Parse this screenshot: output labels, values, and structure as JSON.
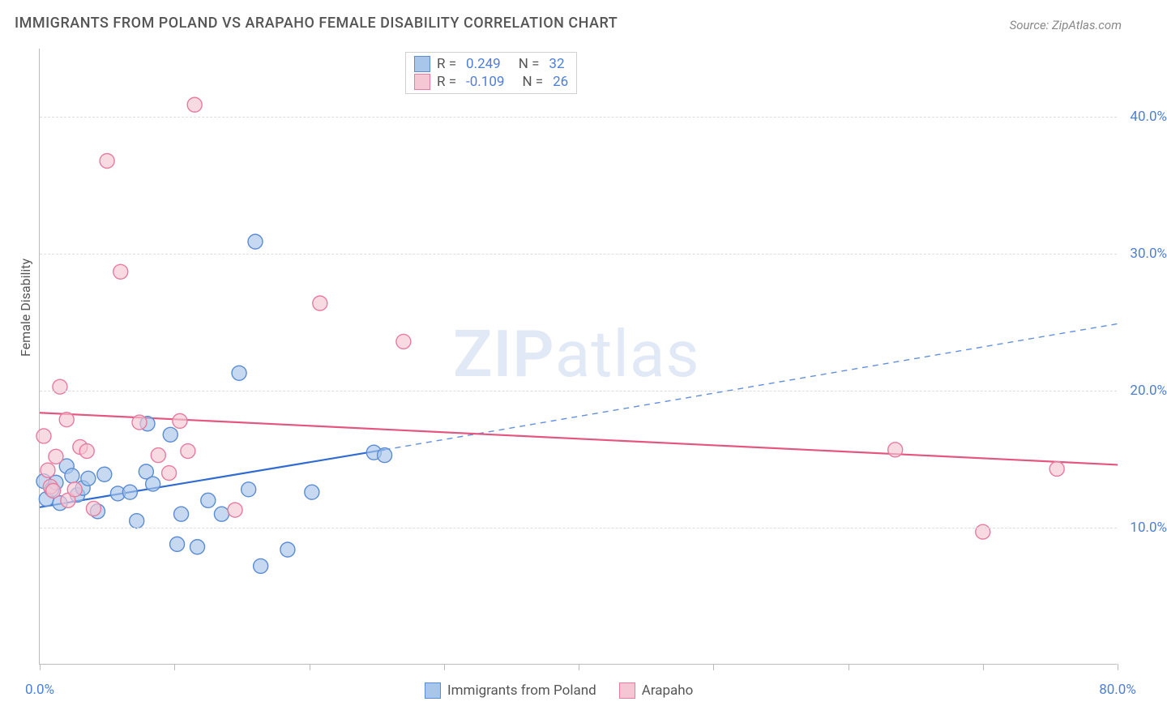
{
  "title": "IMMIGRANTS FROM POLAND VS ARAPAHO FEMALE DISABILITY CORRELATION CHART",
  "source": "Source: ZipAtlas.com",
  "y_axis_label": "Female Disability",
  "watermark": {
    "zip": "ZIP",
    "atlas": "atlas"
  },
  "chart": {
    "type": "scatter",
    "xlim": [
      0,
      80
    ],
    "ylim": [
      0,
      45
    ],
    "x_ticks": [
      0,
      10,
      20,
      30,
      40,
      50,
      60,
      70,
      80
    ],
    "x_tick_labels": {
      "0": "0.0%",
      "80": "80.0%"
    },
    "y_ticks": [
      10,
      20,
      30,
      40
    ],
    "y_tick_labels": {
      "10": "10.0%",
      "20": "20.0%",
      "30": "30.0%",
      "40": "40.0%"
    },
    "background_color": "#ffffff",
    "grid_color": "#dddddd",
    "axis_color": "#bbbbbb",
    "tick_label_color": "#4d7fd6",
    "marker_radius": 9,
    "marker_stroke_width": 1.4,
    "line_width": 2.2,
    "watermark_color": "#c9d8ef",
    "watermark_fontsize": 80
  },
  "series": [
    {
      "name": "Immigrants from Poland",
      "fill_color": "#a8c5ea",
      "stroke_color": "#5a8cd3",
      "line_color": "#2f6bd0",
      "r_value": "0.249",
      "n_value": "32",
      "points": [
        [
          0.3,
          13.4
        ],
        [
          0.5,
          12.1
        ],
        [
          0.9,
          12.8
        ],
        [
          1.2,
          13.3
        ],
        [
          1.5,
          11.8
        ],
        [
          2.0,
          14.5
        ],
        [
          2.4,
          13.8
        ],
        [
          2.8,
          12.4
        ],
        [
          3.2,
          12.9
        ],
        [
          3.6,
          13.6
        ],
        [
          4.3,
          11.2
        ],
        [
          4.8,
          13.9
        ],
        [
          5.8,
          12.5
        ],
        [
          6.7,
          12.6
        ],
        [
          7.2,
          10.5
        ],
        [
          7.9,
          14.1
        ],
        [
          8.0,
          17.6
        ],
        [
          8.4,
          13.2
        ],
        [
          9.7,
          16.8
        ],
        [
          10.2,
          8.8
        ],
        [
          10.5,
          11.0
        ],
        [
          11.7,
          8.6
        ],
        [
          12.5,
          12.0
        ],
        [
          13.5,
          11.0
        ],
        [
          14.8,
          21.3
        ],
        [
          15.5,
          12.8
        ],
        [
          16.0,
          30.9
        ],
        [
          16.4,
          7.2
        ],
        [
          18.4,
          8.4
        ],
        [
          20.2,
          12.6
        ],
        [
          24.8,
          15.5
        ],
        [
          25.6,
          15.3
        ]
      ],
      "regression": {
        "x1": 0,
        "y1": 11.5,
        "x2": 25.6,
        "y2": 15.7,
        "x_ext": 80,
        "y_ext": 24.9
      }
    },
    {
      "name": "Arapaho",
      "fill_color": "#f5c6d3",
      "stroke_color": "#e77ba0",
      "line_color": "#e3567f",
      "r_value": "-0.109",
      "n_value": "26",
      "points": [
        [
          0.3,
          16.7
        ],
        [
          0.6,
          14.2
        ],
        [
          0.8,
          13.0
        ],
        [
          1.0,
          12.7
        ],
        [
          1.2,
          15.2
        ],
        [
          1.5,
          20.3
        ],
        [
          2.0,
          17.9
        ],
        [
          2.1,
          12.0
        ],
        [
          2.6,
          12.8
        ],
        [
          3.0,
          15.9
        ],
        [
          3.5,
          15.6
        ],
        [
          4.0,
          11.4
        ],
        [
          5.0,
          36.8
        ],
        [
          6.0,
          28.7
        ],
        [
          7.4,
          17.7
        ],
        [
          8.8,
          15.3
        ],
        [
          9.6,
          14.0
        ],
        [
          10.4,
          17.8
        ],
        [
          11.0,
          15.6
        ],
        [
          11.5,
          40.9
        ],
        [
          14.5,
          11.3
        ],
        [
          20.8,
          26.4
        ],
        [
          27.0,
          23.6
        ],
        [
          63.5,
          15.7
        ],
        [
          70.0,
          9.7
        ],
        [
          75.5,
          14.3
        ]
      ],
      "regression": {
        "x1": 0,
        "y1": 18.4,
        "x2": 80,
        "y2": 14.6
      }
    }
  ],
  "legend_top": {
    "r_label": "R = ",
    "n_label": "N = "
  },
  "legend_bottom": {
    "items": [
      "Immigrants from Poland",
      "Arapaho"
    ]
  }
}
